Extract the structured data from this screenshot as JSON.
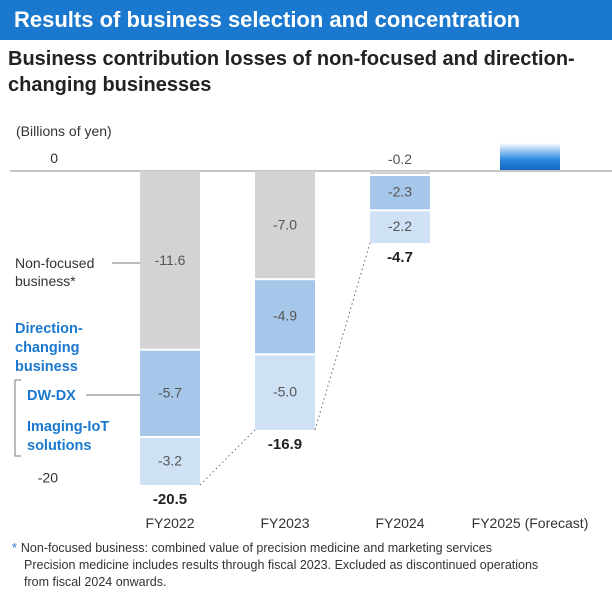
{
  "header": {
    "banner": "Results of business selection and concentration",
    "subtitle_line1": "Business contribution losses of non-focused and direction-",
    "subtitle_line2": "changing businesses"
  },
  "chart_data": {
    "type": "bar",
    "stacked": true,
    "title": "Business contribution losses of non-focused and direction-changing businesses",
    "ylabel": "(Billions of yen)",
    "y_ticks": [
      0,
      -20
    ],
    "y_tick_labels": [
      "0",
      "-20"
    ],
    "ylim": [
      -21,
      1
    ],
    "categories": [
      "FY2022",
      "FY2023",
      "FY2024",
      "FY2025 (Forecast)"
    ],
    "series": [
      {
        "name": "Non-focused business*",
        "color": "#d3d3d3",
        "values": [
          -11.6,
          -7.0,
          -0.2,
          null
        ],
        "labels": [
          "-11.6",
          "-7.0",
          "-0.2",
          ""
        ]
      },
      {
        "name": "DW-DX",
        "color": "#a7c7ea",
        "values": [
          -5.7,
          -4.9,
          -2.3,
          null
        ],
        "labels": [
          "-5.7",
          "-4.9",
          "-2.3",
          ""
        ]
      },
      {
        "name": "Imaging-IoT solutions",
        "color": "#cfe1f5",
        "values": [
          -3.2,
          -5.0,
          -2.2,
          null
        ],
        "labels": [
          "-3.2",
          "-5.0",
          "-2.2",
          ""
        ]
      }
    ],
    "totals": [
      -20.5,
      -16.9,
      -4.7,
      null
    ],
    "total_labels": [
      "-20.5",
      "-16.9",
      "-4.7",
      ""
    ],
    "legend": {
      "non_focused_line1": "Non-focused",
      "non_focused_line2": "business*",
      "direction_line1": "Direction-",
      "direction_line2": "changing",
      "direction_line3": "business",
      "dwdx": "DW-DX",
      "imaging_line1": "Imaging-IoT",
      "imaging_line2": "solutions"
    },
    "colors": {
      "accent": "#1a78cf",
      "nonfocused": "#d3d3d3",
      "dwdx": "#a7c7ea",
      "imaging": "#cfe1f5"
    }
  },
  "notes": {
    "line1": "Non-focused business: combined value of precision medicine and marketing services",
    "line2": "Precision medicine includes results through fiscal 2023. Excluded as discontinued operations",
    "line3": "from fiscal 2024 onwards."
  }
}
